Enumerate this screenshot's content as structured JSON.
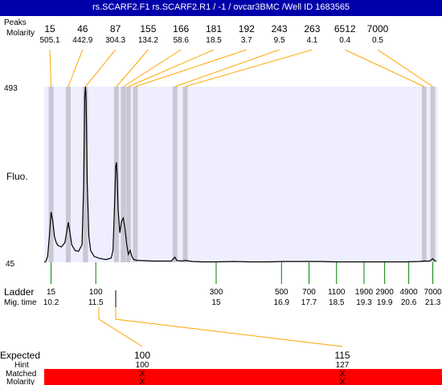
{
  "title": "rs.SCARF2.F1  rs.SCARF2.R1 / -1 / ovcar3BMC  /Well ID 1683565",
  "colors": {
    "title_bar": "#0000aa",
    "plot_bg": "#eeeeff",
    "band": "#c8c8d4",
    "peak_line": "#ffa500",
    "ladder_tick": "#008000",
    "matched_bar": "#ff0000",
    "trace": "#000000"
  },
  "labels": {
    "peaks_row": "Peaks",
    "molarity_row": "Molarity",
    "fluo": "Fluo.",
    "ladder": "Ladder",
    "mig_time": "Mig. time",
    "expected": "Expected",
    "hint": "Hint",
    "matched": "Matched",
    "molarity_bottom": "Molarity"
  },
  "chart_data": {
    "type": "line",
    "ylim": [
      45,
      493
    ],
    "y_ticks": [
      "493",
      "45"
    ],
    "ylabel": "Fluo.",
    "xlim": [
      10.0,
      21.45
    ],
    "peaks": [
      {
        "size": "15",
        "molarity": "505.1",
        "time": 10.2
      },
      {
        "size": "46",
        "molarity": "442.9",
        "time": 10.7
      },
      {
        "size": "87",
        "molarity": "304.3",
        "time": 11.2
      },
      {
        "size": "155",
        "molarity": "134.2",
        "time": 12.1
      },
      {
        "size": "166",
        "molarity": "58.6",
        "time": 12.3
      },
      {
        "size": "181",
        "molarity": "18.5",
        "time": 12.45
      },
      {
        "size": "192",
        "molarity": "3.7",
        "time": 12.65
      },
      {
        "size": "243",
        "molarity": "9.5",
        "time": 13.8
      },
      {
        "size": "263",
        "molarity": "4.1",
        "time": 14.1
      },
      {
        "size": "6512",
        "molarity": "0.4",
        "time": 21.05
      },
      {
        "size": "7000",
        "molarity": "0.5",
        "time": 21.3
      }
    ],
    "ladder": [
      {
        "size": "15",
        "time": "10.2",
        "t": 10.2
      },
      {
        "size": "100",
        "time": "11.5",
        "t": 11.5
      },
      {
        "size": "300",
        "time": "15",
        "t": 15.0
      },
      {
        "size": "500",
        "time": "16.9",
        "t": 16.9
      },
      {
        "size": "700",
        "time": "17.7",
        "t": 17.7
      },
      {
        "size": "1100",
        "time": "18.5",
        "t": 18.5
      },
      {
        "size": "1900",
        "time": "19.3",
        "t": 19.3
      },
      {
        "size": "2900",
        "time": "19.9",
        "t": 19.9
      },
      {
        "size": "4900",
        "time": "20.6",
        "t": 20.6
      },
      {
        "size": "7000",
        "time": "21.3",
        "t": 21.3
      }
    ],
    "expected": [
      {
        "size": "100",
        "hint": "100",
        "matched": "X",
        "molarity": "X",
        "time": 12.0
      },
      {
        "size": "115",
        "hint": "127",
        "matched": "X",
        "molarity": "X",
        "time": 12.0
      }
    ],
    "trace": [
      [
        10.0,
        45
      ],
      [
        10.05,
        47
      ],
      [
        10.1,
        60
      ],
      [
        10.15,
        110
      ],
      [
        10.2,
        173
      ],
      [
        10.25,
        150
      ],
      [
        10.3,
        110
      ],
      [
        10.35,
        95
      ],
      [
        10.4,
        88
      ],
      [
        10.5,
        84
      ],
      [
        10.6,
        95
      ],
      [
        10.65,
        120
      ],
      [
        10.7,
        147
      ],
      [
        10.75,
        120
      ],
      [
        10.8,
        90
      ],
      [
        10.9,
        75
      ],
      [
        11.0,
        73
      ],
      [
        11.1,
        90
      ],
      [
        11.15,
        250
      ],
      [
        11.18,
        470
      ],
      [
        11.2,
        493
      ],
      [
        11.22,
        460
      ],
      [
        11.25,
        250
      ],
      [
        11.3,
        110
      ],
      [
        11.35,
        75
      ],
      [
        11.45,
        60
      ],
      [
        11.6,
        55
      ],
      [
        11.8,
        52
      ],
      [
        11.95,
        56
      ],
      [
        12.0,
        75
      ],
      [
        12.05,
        200
      ],
      [
        12.08,
        290
      ],
      [
        12.1,
        300
      ],
      [
        12.12,
        270
      ],
      [
        12.15,
        180
      ],
      [
        12.2,
        120
      ],
      [
        12.25,
        150
      ],
      [
        12.3,
        158
      ],
      [
        12.35,
        130
      ],
      [
        12.4,
        90
      ],
      [
        12.45,
        65
      ],
      [
        12.5,
        75
      ],
      [
        12.55,
        60
      ],
      [
        12.6,
        52
      ],
      [
        12.7,
        50
      ],
      [
        12.9,
        49
      ],
      [
        13.2,
        48
      ],
      [
        13.5,
        48
      ],
      [
        13.7,
        48
      ],
      [
        13.8,
        58
      ],
      [
        13.85,
        50
      ],
      [
        14.0,
        48
      ],
      [
        14.1,
        50
      ],
      [
        14.3,
        47
      ],
      [
        14.6,
        46
      ],
      [
        15.0,
        46
      ],
      [
        15.5,
        47
      ],
      [
        16.0,
        46
      ],
      [
        16.5,
        46
      ],
      [
        17.0,
        47
      ],
      [
        17.5,
        47
      ],
      [
        18.0,
        47
      ],
      [
        18.5,
        46
      ],
      [
        19.0,
        46
      ],
      [
        19.5,
        46
      ],
      [
        20.0,
        46
      ],
      [
        20.5,
        46
      ],
      [
        20.9,
        47
      ],
      [
        21.05,
        48
      ],
      [
        21.2,
        48
      ],
      [
        21.3,
        54
      ],
      [
        21.35,
        49
      ],
      [
        21.4,
        48
      ]
    ]
  }
}
